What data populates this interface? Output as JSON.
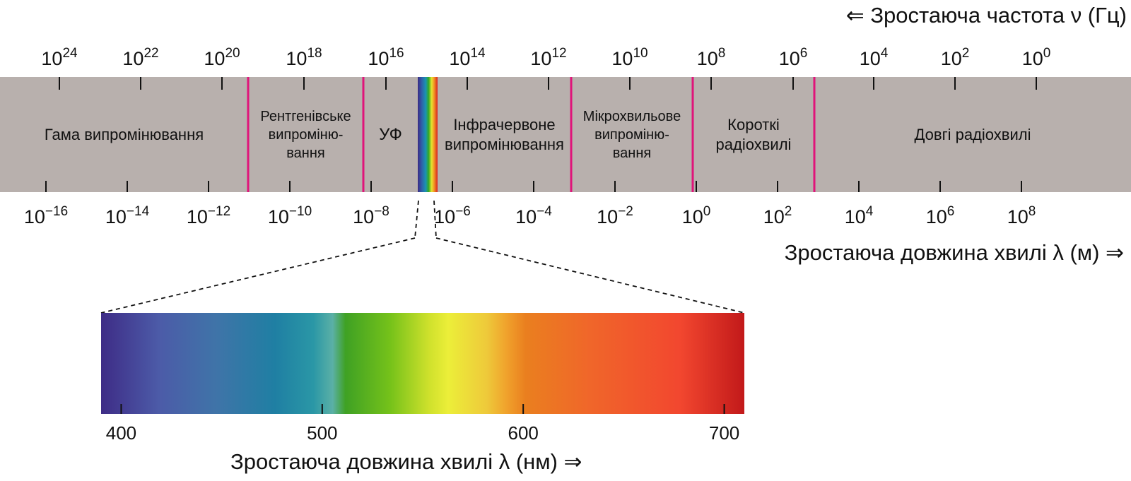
{
  "title_top": "⇐ Зростаюча частота ν (Гц)",
  "title_mid": "Зростаюча довжина хвилі λ (м) ⇒",
  "title_bottom": "Зростаюча довжина хвилі λ (нм) ⇒",
  "frequency_ticks": [
    {
      "base": "10",
      "exp": "24"
    },
    {
      "base": "10",
      "exp": "22"
    },
    {
      "base": "10",
      "exp": "20"
    },
    {
      "base": "10",
      "exp": "18"
    },
    {
      "base": "10",
      "exp": "16"
    },
    {
      "base": "10",
      "exp": "14"
    },
    {
      "base": "10",
      "exp": "12"
    },
    {
      "base": "10",
      "exp": "10"
    },
    {
      "base": "10",
      "exp": "8"
    },
    {
      "base": "10",
      "exp": "6"
    },
    {
      "base": "10",
      "exp": "4"
    },
    {
      "base": "10",
      "exp": "2"
    },
    {
      "base": "10",
      "exp": "0"
    }
  ],
  "wavelength_ticks": [
    {
      "base": "10",
      "exp": "−16"
    },
    {
      "base": "10",
      "exp": "−14"
    },
    {
      "base": "10",
      "exp": "−12"
    },
    {
      "base": "10",
      "exp": "−10"
    },
    {
      "base": "10",
      "exp": "−8"
    },
    {
      "base": "10",
      "exp": "−6"
    },
    {
      "base": "10",
      "exp": "−4"
    },
    {
      "base": "10",
      "exp": "−2"
    },
    {
      "base": "10",
      "exp": "0"
    },
    {
      "base": "10",
      "exp": "2"
    },
    {
      "base": "10",
      "exp": "4"
    },
    {
      "base": "10",
      "exp": "6"
    },
    {
      "base": "10",
      "exp": "8"
    }
  ],
  "regions": [
    {
      "id": "gamma",
      "lines": [
        "Гама випромінювання"
      ]
    },
    {
      "id": "xray",
      "lines": [
        "Рентгенівське",
        "випроміню-",
        "вання"
      ]
    },
    {
      "id": "uv",
      "lines": [
        "УФ"
      ]
    },
    {
      "id": "infrared",
      "lines": [
        "Інфрачервоне",
        "випромінювання"
      ]
    },
    {
      "id": "microwave",
      "lines": [
        "Мікрохвильове",
        "випроміню-",
        "вання"
      ]
    },
    {
      "id": "short-radio",
      "lines": [
        "Короткі",
        "радіохвилі"
      ]
    },
    {
      "id": "long-radio",
      "lines": [
        "Довгі радіохвилі"
      ]
    }
  ],
  "visible_ticks": [
    {
      "label": "400",
      "nm": 400
    },
    {
      "label": "500",
      "nm": 500
    },
    {
      "label": "600",
      "nm": 600
    },
    {
      "label": "700",
      "nm": 700
    }
  ],
  "visible_range_nm": [
    390,
    710
  ],
  "colors": {
    "band": "#b8b0ad",
    "boundary": "#e0147a",
    "spectrum_stops": [
      "#3e2c86",
      "#4d5eaa",
      "#1f7fa3",
      "#2a9aa8",
      "#3fa321",
      "#8cc51c",
      "#e4e832",
      "#f0a823",
      "#f06e22",
      "#f2482e",
      "#c21a19"
    ]
  }
}
